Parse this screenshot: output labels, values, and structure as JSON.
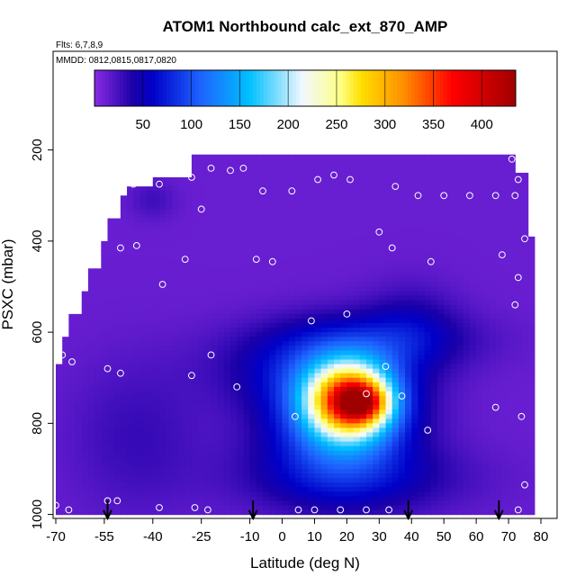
{
  "chart_data": {
    "type": "heatmap",
    "title": "ATOM1 Northbound calc_ext_870_AMP",
    "flights_label": "Flts: 6,7,8,9",
    "dates_label": "MMDD: 0812,0815,0817,0820",
    "xlabel": "Latitude (deg N)",
    "ylabel": "PSXC (mbar)",
    "xlim": [
      -70,
      80
    ],
    "ylim": [
      1000,
      0
    ],
    "x_ticks": [
      -70,
      -55,
      -40,
      -25,
      -10,
      0,
      10,
      20,
      30,
      40,
      50,
      60,
      70,
      80
    ],
    "x_tick_labels": [
      "-70",
      "-55",
      "-40",
      "-25",
      "-10",
      "0",
      "10",
      "20",
      "30",
      "40",
      "50",
      "60",
      "70",
      "80"
    ],
    "y_ticks": [
      200,
      400,
      600,
      800,
      1000
    ],
    "y_tick_labels": [
      "200",
      "400",
      "600",
      "800",
      "1000"
    ],
    "colorbar": {
      "range": [
        0,
        435
      ],
      "ticks": [
        50,
        100,
        150,
        200,
        250,
        300,
        350,
        400
      ],
      "tick_labels": [
        "50",
        "100",
        "150",
        "200",
        "250",
        "300",
        "350",
        "400"
      ],
      "stops": [
        {
          "v": 0,
          "c": "#8a2be2"
        },
        {
          "v": 40,
          "c": "#1a00a8"
        },
        {
          "v": 60,
          "c": "#0000c8"
        },
        {
          "v": 110,
          "c": "#1e64ff"
        },
        {
          "v": 160,
          "c": "#00c0ff"
        },
        {
          "v": 215,
          "c": "#f2f8ff"
        },
        {
          "v": 255,
          "c": "#ffff80"
        },
        {
          "v": 275,
          "c": "#ffe000"
        },
        {
          "v": 320,
          "c": "#ff8c00"
        },
        {
          "v": 370,
          "c": "#ff0000"
        },
        {
          "v": 435,
          "c": "#a00000"
        }
      ]
    },
    "domain_outline": [
      [
        -70,
        1000
      ],
      [
        -70,
        670
      ],
      [
        -68,
        670
      ],
      [
        -68,
        610
      ],
      [
        -65,
        610
      ],
      [
        -65,
        560
      ],
      [
        -62,
        560
      ],
      [
        -62,
        510
      ],
      [
        -59,
        510
      ],
      [
        -59,
        460
      ],
      [
        -56,
        460
      ],
      [
        -56,
        400
      ],
      [
        -53,
        400
      ],
      [
        -53,
        350
      ],
      [
        -50,
        350
      ],
      [
        -50,
        300
      ],
      [
        -47,
        300
      ],
      [
        -47,
        280
      ],
      [
        -40,
        280
      ],
      [
        -40,
        265
      ],
      [
        -28,
        265
      ],
      [
        -28,
        215
      ],
      [
        73,
        215
      ],
      [
        73,
        250
      ],
      [
        76,
        250
      ],
      [
        76,
        390
      ],
      [
        79,
        390
      ],
      [
        79,
        1000
      ]
    ],
    "anomalies": [
      {
        "x": 21,
        "y": 750,
        "sx": 9,
        "sy": 55,
        "amp": 270
      },
      {
        "x": 25,
        "y": 755,
        "sx": 5,
        "sy": 28,
        "amp": 120
      },
      {
        "x": 18,
        "y": 790,
        "sx": 15,
        "sy": 95,
        "amp": 110
      },
      {
        "x": 10,
        "y": 680,
        "sx": 20,
        "sy": 60,
        "amp": 40
      },
      {
        "x": 28,
        "y": 620,
        "sx": 22,
        "sy": 45,
        "amp": 35
      },
      {
        "x": 22,
        "y": 920,
        "sx": 24,
        "sy": 55,
        "amp": 35
      },
      {
        "x": 40,
        "y": 580,
        "sx": 10,
        "sy": 60,
        "amp": 25
      },
      {
        "x": -45,
        "y": 830,
        "sx": 15,
        "sy": 120,
        "amp": 18
      },
      {
        "x": -40,
        "y": 310,
        "sx": 5,
        "sy": 30,
        "amp": 15
      }
    ],
    "sample_points": [
      [
        -22,
        240
      ],
      [
        -16,
        245
      ],
      [
        -12,
        240
      ],
      [
        -28,
        260
      ],
      [
        -46,
        275
      ],
      [
        -38,
        275
      ],
      [
        -58,
        295
      ],
      [
        -25,
        330
      ],
      [
        -6,
        290
      ],
      [
        3,
        290
      ],
      [
        11,
        265
      ],
      [
        16,
        255
      ],
      [
        21,
        265
      ],
      [
        35,
        280
      ],
      [
        42,
        300
      ],
      [
        50,
        300
      ],
      [
        58,
        300
      ],
      [
        66,
        300
      ],
      [
        72,
        300
      ],
      [
        73,
        265
      ],
      [
        71,
        220
      ],
      [
        -57,
        345
      ],
      [
        -50,
        415
      ],
      [
        -45,
        410
      ],
      [
        -30,
        440
      ],
      [
        -8,
        440
      ],
      [
        -3,
        445
      ],
      [
        30,
        380
      ],
      [
        34,
        415
      ],
      [
        46,
        445
      ],
      [
        68,
        430
      ],
      [
        75,
        395
      ],
      [
        73,
        480
      ],
      [
        -37,
        495
      ],
      [
        9,
        575
      ],
      [
        20,
        560
      ],
      [
        72,
        540
      ],
      [
        -65,
        665
      ],
      [
        -68,
        650
      ],
      [
        -54,
        680
      ],
      [
        -50,
        690
      ],
      [
        -28,
        695
      ],
      [
        -22,
        650
      ],
      [
        -14,
        720
      ],
      [
        32,
        675
      ],
      [
        26,
        735
      ],
      [
        37,
        740
      ],
      [
        4,
        785
      ],
      [
        45,
        815
      ],
      [
        66,
        765
      ],
      [
        74,
        785
      ],
      [
        75,
        935
      ],
      [
        -51,
        970
      ],
      [
        -54,
        970
      ],
      [
        -38,
        985
      ],
      [
        -27,
        985
      ],
      [
        -23,
        990
      ],
      [
        5,
        990
      ],
      [
        10,
        990
      ],
      [
        18,
        990
      ],
      [
        26,
        990
      ],
      [
        33,
        990
      ],
      [
        73,
        990
      ],
      [
        80,
        975
      ],
      [
        -70,
        980
      ],
      [
        -66,
        990
      ]
    ],
    "arrows": [
      -54,
      -9,
      39,
      67
    ]
  }
}
